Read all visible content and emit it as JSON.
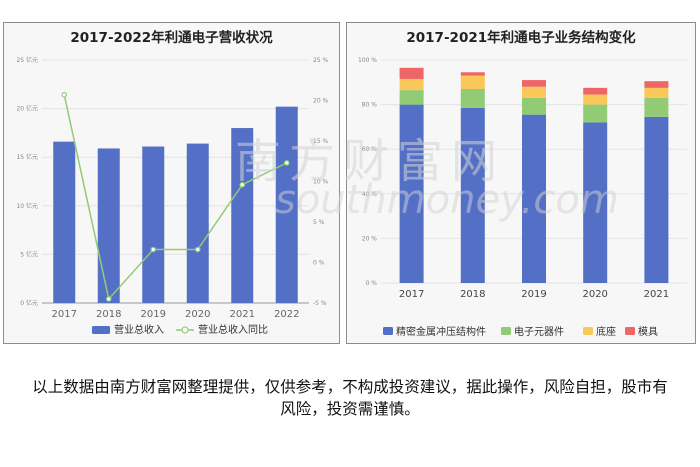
{
  "charts": [
    {
      "title": "2017-2022年利通电子营收状况",
      "chart_data": {
        "type": "bar",
        "categories": [
          "2017",
          "2018",
          "2019",
          "2020",
          "2021",
          "2022"
        ],
        "series": [
          {
            "name": "营业总收入",
            "type": "bar",
            "axis": "left",
            "values": [
              16.6,
              15.9,
              16.1,
              16.4,
              18.0,
              20.2
            ],
            "color": "#5470c6"
          },
          {
            "name": "营业总收入同比",
            "type": "line",
            "axis": "right",
            "values": [
              20.7,
              -4.5,
              1.6,
              1.6,
              9.6,
              12.3
            ],
            "color": "#91cc75"
          }
        ],
        "y_left": {
          "min": 0,
          "max": 25,
          "ticks": [
            "0 亿元",
            "5 亿元",
            "10 亿元",
            "15 亿元",
            "20 亿元",
            "25 亿元"
          ]
        },
        "y_right": {
          "min": -5,
          "max": 25,
          "ticks": [
            "-5 %",
            "0 %",
            "5 %",
            "10 %",
            "15 %",
            "20 %",
            "25 %"
          ]
        },
        "grid": true,
        "legend_position": "bottom"
      }
    },
    {
      "title": "2017-2021年利通电子业务结构变化",
      "chart_data": {
        "type": "bar",
        "stacked": true,
        "categories": [
          "2017",
          "2018",
          "2019",
          "2020",
          "2021"
        ],
        "series": [
          {
            "name": "精密金属冲压结构件",
            "values": [
              80,
              78.5,
              75.5,
              72,
              74.5
            ],
            "color": "#5470c6"
          },
          {
            "name": "电子元器件",
            "values": [
              6.5,
              8.5,
              7.5,
              8,
              8.5
            ],
            "color": "#91cc75"
          },
          {
            "name": "底座",
            "values": [
              5,
              6,
              5,
              4.5,
              4.5
            ],
            "color": "#fac858"
          },
          {
            "name": "模具",
            "values": [
              5,
              1.5,
              3,
              3,
              3
            ],
            "color": "#ee6666"
          }
        ],
        "y_left": {
          "min": 0,
          "max": 100,
          "ticks": [
            "0 %",
            "20 %",
            "40 %",
            "60 %",
            "80 %",
            "100 %"
          ]
        },
        "grid": true,
        "legend_position": "bottom"
      }
    }
  ],
  "watermark": {
    "main": "南方财富网",
    "sub": "southmoney.com"
  },
  "disclaimer": "以上数据由南方财富网整理提供，仅供参考，不构成投资建议，据此操作，风险自担，股市有风险，投资需谨慎。"
}
